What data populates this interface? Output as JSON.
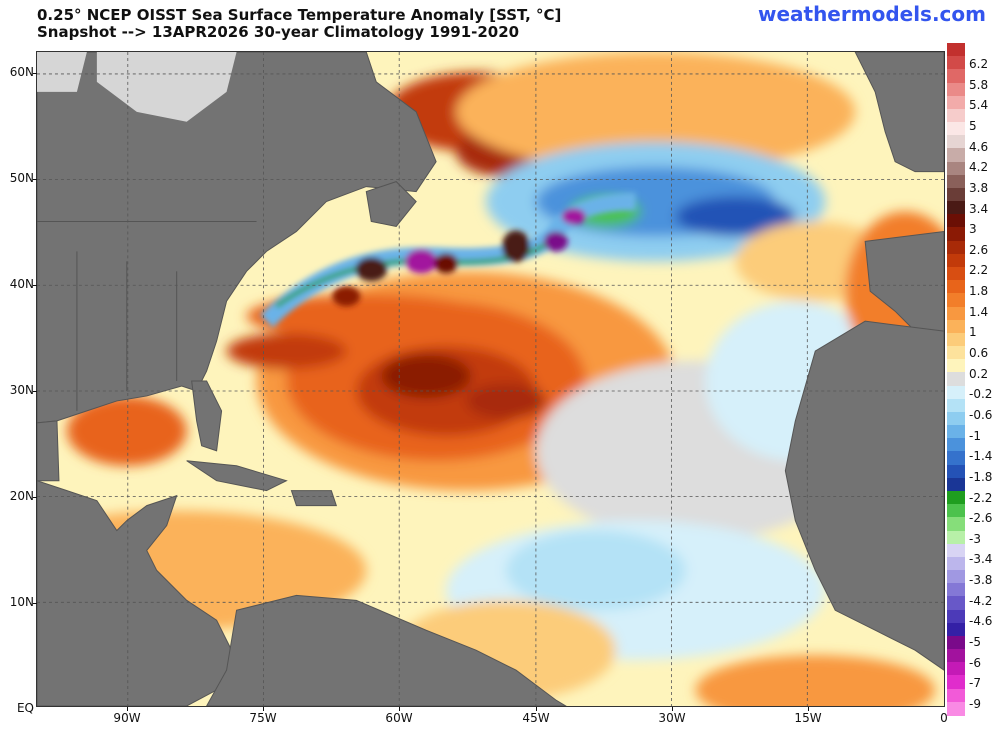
{
  "header": {
    "title_line1": "0.25° NCEP OISST Sea Surface Temperature Anomaly [SST, °C]",
    "title_line2": "Snapshot --> 13APR2026   30-year Climatology 1991-2020",
    "brand": "weathermodels.com"
  },
  "axes": {
    "lat_labels": [
      "60N",
      "50N",
      "40N",
      "30N",
      "20N",
      "10N",
      "EQ"
    ],
    "lon_labels": [
      "90W",
      "75W",
      "60W",
      "45W",
      "30W",
      "15W",
      "0"
    ]
  },
  "colorbar": {
    "labels": [
      "6.2",
      "5.8",
      "5.4",
      "5",
      "4.6",
      "4.2",
      "3.8",
      "3.4",
      "3",
      "2.6",
      "2.2",
      "1.8",
      "1.4",
      "1",
      "0.6",
      "0.2",
      "-0.2",
      "-0.6",
      "-1",
      "-1.4",
      "-1.8",
      "-2.2",
      "-2.6",
      "-3",
      "-3.4",
      "-3.8",
      "-4.2",
      "-4.6",
      "-5",
      "-6",
      "-7",
      "-9"
    ],
    "colors": [
      "#c2302e",
      "#d24a48",
      "#e06866",
      "#ea8a88",
      "#f2abaa",
      "#f6cccb",
      "#fbe7e6",
      "#e6d5d3",
      "#c8aca8",
      "#a98580",
      "#8a605a",
      "#6a3d37",
      "#4a1a15",
      "#6b0f05",
      "#8b1a05",
      "#a82a08",
      "#c23a0a",
      "#d84e12",
      "#e8641a",
      "#f27e2a",
      "#f89840",
      "#fbb25a",
      "#fccc7a",
      "#fde29c",
      "#fef4bc",
      "#dddddd",
      "#d6f0fa",
      "#b4e2f6",
      "#8ecdf0",
      "#6ab2e8",
      "#4b92dc",
      "#3572cc",
      "#2452b6",
      "#1a3696",
      "#1f9e1f",
      "#4cc24c",
      "#86de7a",
      "#b8f0a8",
      "#d8d4f4",
      "#bcb6ec",
      "#a098e2",
      "#8478d6",
      "#6858c8",
      "#4c3ab8",
      "#3420a6",
      "#7a0a8a",
      "#a2129e",
      "#c41ab6",
      "#e02ccc",
      "#f25ad8",
      "#f98ae4"
    ]
  },
  "map": {
    "colors": {
      "ocean_base": "#fef4bc",
      "neutral": "#dddddd",
      "land": "#737373",
      "ice": "#d6d6d6",
      "border": "#555555"
    }
  }
}
